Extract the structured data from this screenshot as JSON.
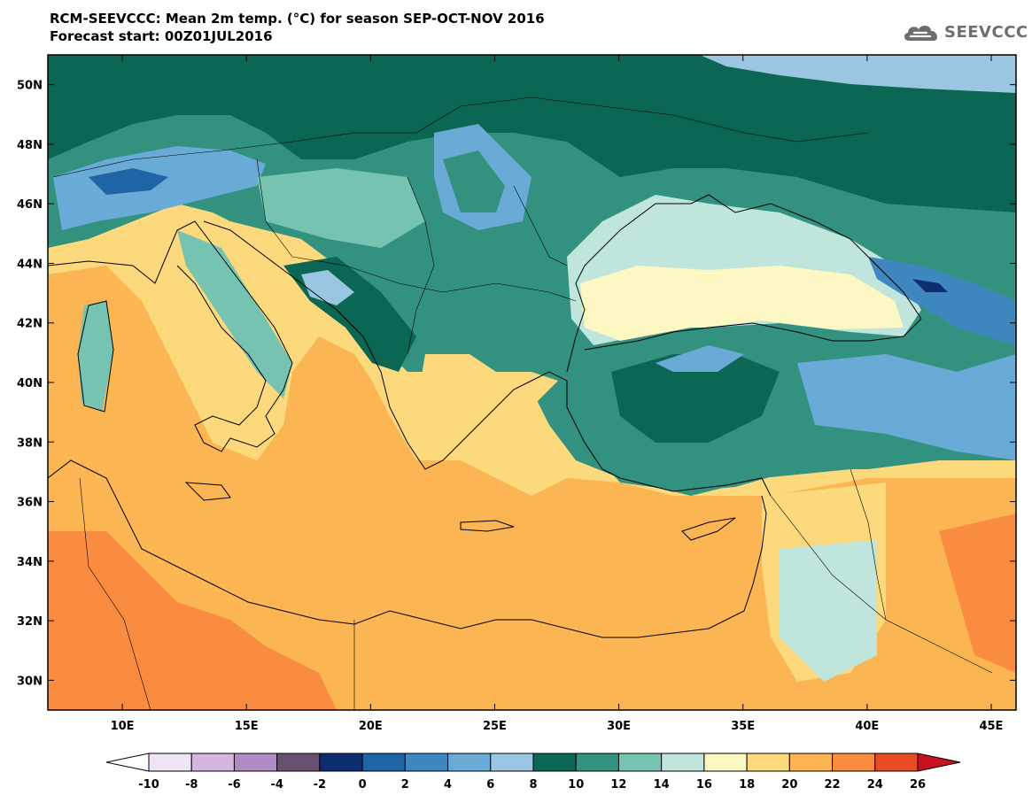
{
  "header": {
    "title": "RCM-SEEVCCC: Mean 2m temp. (°C) for season SEP-OCT-NOV 2016",
    "subtitle": "Forecast start: 00Z01JUL2016"
  },
  "logo": {
    "text": "SEEVCCC",
    "icon": "cloud-icon",
    "color": "#6e6e6e"
  },
  "map": {
    "lat_ticks": [
      "50N",
      "48N",
      "46N",
      "44N",
      "42N",
      "40N",
      "38N",
      "36N",
      "34N",
      "32N",
      "30N"
    ],
    "lon_ticks": [
      "10E",
      "15E",
      "20E",
      "25E",
      "30E",
      "35E",
      "40E",
      "45E"
    ],
    "lat_values": [
      50,
      48,
      46,
      44,
      42,
      40,
      38,
      36,
      34,
      32,
      30
    ],
    "lon_values": [
      10,
      15,
      20,
      25,
      30,
      35,
      40,
      45
    ],
    "extent": {
      "lon": [
        7,
        46
      ],
      "lat": [
        29,
        51
      ]
    }
  },
  "colorbar": {
    "labels": [
      "-10",
      "-8",
      "-6",
      "-4",
      "-2",
      "0",
      "2",
      "4",
      "6",
      "8",
      "10",
      "12",
      "14",
      "16",
      "18",
      "20",
      "22",
      "24",
      "26"
    ],
    "colors": [
      "#efe4f5",
      "#d6b5e3",
      "#b08ac4",
      "#6a5070",
      "#0d2d6e",
      "#1f64a4",
      "#3e87bf",
      "#6aaad6",
      "#9ac6e1",
      "#0b6654",
      "#33917f",
      "#76c3b1",
      "#bfe5dc",
      "#fdf8c3",
      "#fcd97c",
      "#fbb552",
      "#f98c40",
      "#e94b25"
    ],
    "under_color": "#ffffff",
    "over_color": "#c8101e"
  }
}
